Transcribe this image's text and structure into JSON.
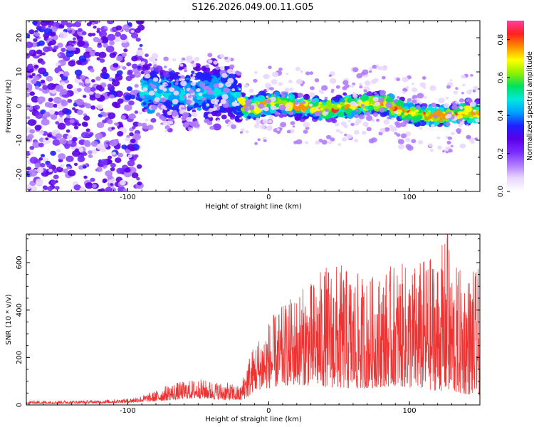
{
  "title": "S126.2026.049.00.11.G05",
  "chart_data": [
    {
      "type": "heatmap",
      "title": "S126.2026.049.00.11.G05",
      "xlabel": "Height of straight line (km)",
      "ylabel": "Frequency (Hz)",
      "xlim": [
        -172,
        150
      ],
      "ylim": [
        -25,
        25
      ],
      "xticks": [
        -100,
        0,
        100
      ],
      "xtick_labels": [
        "-100",
        "0",
        "100"
      ],
      "yticks": [
        -20,
        -10,
        0,
        10,
        20
      ],
      "ytick_labels": [
        "-20",
        "-10",
        "0",
        "10",
        "20"
      ],
      "ridge_center_hz": {
        "x": [
          -172,
          -140,
          -100,
          -80,
          -60,
          -40,
          -30,
          -20,
          -15,
          0,
          20,
          40,
          60,
          80,
          100,
          120,
          140,
          150
        ],
        "y": [
          22,
          15,
          5,
          4,
          3,
          4,
          5,
          1,
          -1,
          1,
          0,
          -1,
          0,
          1,
          -2,
          -3,
          -2,
          -2
        ]
      },
      "colorbar": {
        "label": "Normalized spectral amplitude",
        "range": [
          0,
          0.9
        ],
        "ticks": [
          0.0,
          0.2,
          0.4,
          0.6,
          0.8
        ],
        "tick_labels": [
          "0.0",
          "0.2",
          "0.4",
          "0.6",
          "0.8"
        ],
        "colormap": [
          "#ffffff",
          "#e9d8ff",
          "#b07cff",
          "#7a2cff",
          "#5a00e6",
          "#2020ff",
          "#00a0ff",
          "#00e8e0",
          "#00e060",
          "#90f000",
          "#ffff00",
          "#ff9000",
          "#ff2020",
          "#ff40a0"
        ]
      }
    },
    {
      "type": "line",
      "xlabel": "Height of straight line (km)",
      "ylabel": "SNR (10 * v/v)",
      "xlim": [
        -172,
        150
      ],
      "ylim": [
        0,
        720
      ],
      "xticks": [
        -100,
        0,
        100
      ],
      "xtick_labels": [
        "-100",
        "0",
        "100"
      ],
      "yticks": [
        0,
        200,
        400,
        600
      ],
      "ytick_labels": [
        "0",
        "200",
        "400",
        "600"
      ],
      "color": "#ee3333",
      "envelope": {
        "x": [
          -172,
          -120,
          -100,
          -90,
          -80,
          -70,
          -60,
          -50,
          -40,
          -30,
          -20,
          -15,
          -10,
          0,
          10,
          20,
          30,
          40,
          50,
          60,
          70,
          80,
          90,
          100,
          110,
          120,
          127,
          130,
          140,
          150
        ],
        "low": [
          5,
          7,
          10,
          12,
          15,
          20,
          25,
          28,
          25,
          20,
          18,
          30,
          60,
          70,
          80,
          85,
          80,
          75,
          70,
          65,
          70,
          75,
          80,
          70,
          65,
          60,
          55,
          50,
          45,
          40
        ],
        "high": [
          18,
          20,
          28,
          40,
          60,
          90,
          100,
          110,
          100,
          95,
          80,
          200,
          260,
          360,
          420,
          480,
          520,
          590,
          600,
          560,
          540,
          560,
          600,
          590,
          620,
          640,
          720,
          600,
          560,
          580
        ]
      },
      "peak": {
        "x": 127,
        "y": 720
      }
    }
  ]
}
